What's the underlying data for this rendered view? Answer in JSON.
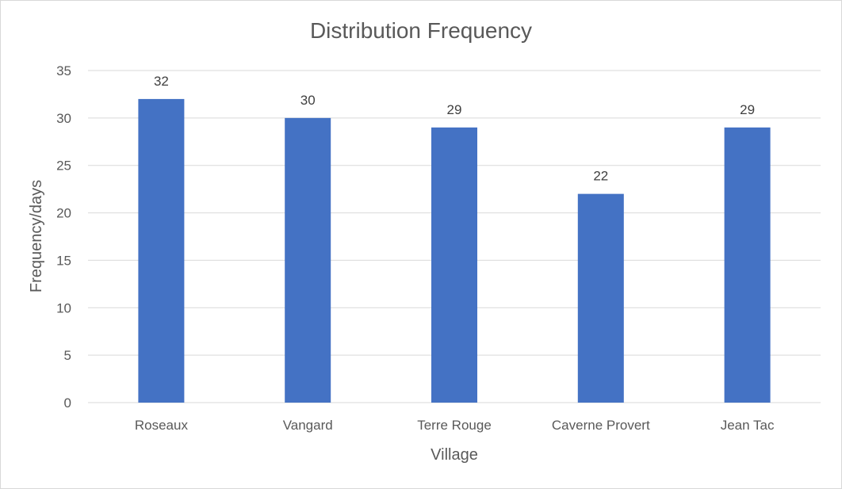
{
  "chart_data": {
    "type": "bar",
    "title": "Distribution Frequency",
    "xlabel": "Village",
    "ylabel": "Frequency/days",
    "categories": [
      "Roseaux",
      "Vangard",
      "Terre Rouge",
      "Caverne Provert",
      "Jean Tac"
    ],
    "values": [
      32,
      30,
      29,
      22,
      29
    ],
    "ylim": [
      0,
      35
    ],
    "yticks": [
      "0",
      "5",
      "10",
      "15",
      "20",
      "25",
      "30",
      "35"
    ],
    "data_labels": [
      "32",
      "30",
      "29",
      "22",
      "29"
    ],
    "bar_color": "#4472C4",
    "grid": true,
    "legend": "none"
  }
}
